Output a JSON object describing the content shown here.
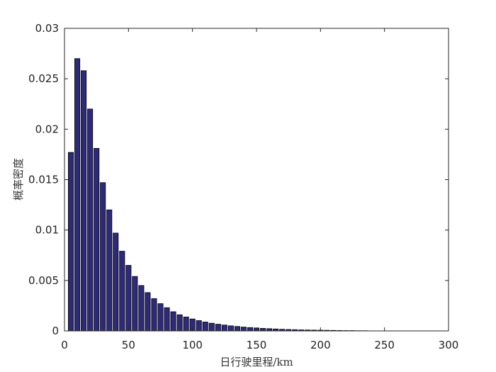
{
  "chart_data": {
    "type": "bar",
    "title": "",
    "xlabel": "日行驶里程/km",
    "ylabel": "概率密度",
    "xlim": [
      0,
      300
    ],
    "ylim": [
      0,
      0.03
    ],
    "xticks": [
      0,
      50,
      100,
      150,
      200,
      250,
      300
    ],
    "xtick_labels": [
      "0",
      "50",
      "100",
      "150",
      "200",
      "250",
      "300"
    ],
    "yticks": [
      0,
      0.005,
      0.01,
      0.015,
      0.02,
      0.025,
      0.03
    ],
    "ytick_labels": [
      "0",
      "0.005",
      "0.01",
      "0.015",
      "0.02",
      "0.025",
      "0.03"
    ],
    "grid": false,
    "bin_width": 5,
    "bar_color": "#2e2a7a",
    "bar_edge_color": "#000000",
    "x": [
      5,
      10,
      15,
      20,
      25,
      30,
      35,
      40,
      45,
      50,
      55,
      60,
      65,
      70,
      75,
      80,
      85,
      90,
      95,
      100,
      105,
      110,
      115,
      120,
      125,
      130,
      135,
      140,
      145,
      150,
      155,
      160,
      165,
      170,
      175,
      180,
      185,
      190,
      195,
      200,
      205,
      210,
      215,
      220,
      225,
      230,
      235
    ],
    "values": [
      0.0177,
      0.027,
      0.0258,
      0.022,
      0.0181,
      0.0147,
      0.012,
      0.0097,
      0.0079,
      0.0065,
      0.0054,
      0.0045,
      0.0038,
      0.0032,
      0.0027,
      0.0023,
      0.0019,
      0.0016,
      0.00138,
      0.00118,
      0.00102,
      0.00088,
      0.00076,
      0.00066,
      0.00058,
      0.0005,
      0.00044,
      0.00038,
      0.00033,
      0.00029,
      0.00025,
      0.00022,
      0.00019,
      0.00016,
      0.00014,
      0.00012,
      0.0001,
      9e-05,
      8e-05,
      7e-05,
      6e-05,
      5e-05,
      4e-05,
      3e-05,
      3e-05,
      2e-05,
      2e-05
    ]
  }
}
